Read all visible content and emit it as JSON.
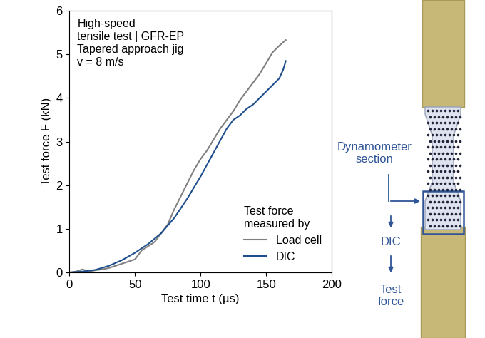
{
  "chart_data": {
    "type": "line",
    "annotation": "High-speed\ntensile test | GFR-EP\nTapered approach jig\nv = 8 m/s",
    "x_label": "Test time t (µs)",
    "y_label": "Test force F (kN)",
    "xlim": [
      0,
      200
    ],
    "xticks": [
      0,
      50,
      100,
      150,
      200
    ],
    "ylim": [
      0,
      6
    ],
    "yticks": [
      0,
      1,
      2,
      3,
      4,
      5,
      6
    ],
    "legend": "lower right",
    "legend_title": "Test force\nmeasured by",
    "series": [
      {
        "name": "Load cell",
        "color": "#808080",
        "x": [
          0,
          5,
          10,
          15,
          20,
          25,
          30,
          35,
          40,
          45,
          50,
          55,
          60,
          65,
          70,
          75,
          80,
          85,
          90,
          95,
          100,
          105,
          110,
          115,
          120,
          125,
          130,
          135,
          140,
          145,
          150,
          155,
          160,
          165
        ],
        "values": [
          0,
          0.02,
          0.07,
          0.02,
          0.05,
          0.07,
          0.1,
          0.15,
          0.2,
          0.25,
          0.3,
          0.5,
          0.6,
          0.7,
          0.9,
          1.1,
          1.45,
          1.75,
          2.05,
          2.35,
          2.6,
          2.8,
          3.05,
          3.3,
          3.5,
          3.7,
          3.95,
          4.15,
          4.35,
          4.55,
          4.8,
          5.05,
          5.2,
          5.33
        ]
      },
      {
        "name": "DIC",
        "color": "#1f4e8c",
        "x": [
          0,
          10,
          20,
          30,
          40,
          50,
          60,
          70,
          80,
          90,
          100,
          110,
          120,
          125,
          130,
          135,
          140,
          145,
          150,
          155,
          160,
          163,
          165
        ],
        "values": [
          0,
          0.02,
          0.06,
          0.15,
          0.28,
          0.45,
          0.65,
          0.9,
          1.25,
          1.7,
          2.2,
          2.75,
          3.3,
          3.5,
          3.6,
          3.75,
          3.85,
          4.0,
          4.15,
          4.3,
          4.45,
          4.65,
          4.85
        ]
      }
    ]
  },
  "diagram": {
    "section_label": "Dynamometer\nsection",
    "steps": [
      "DIC",
      "Test\nforce"
    ]
  }
}
